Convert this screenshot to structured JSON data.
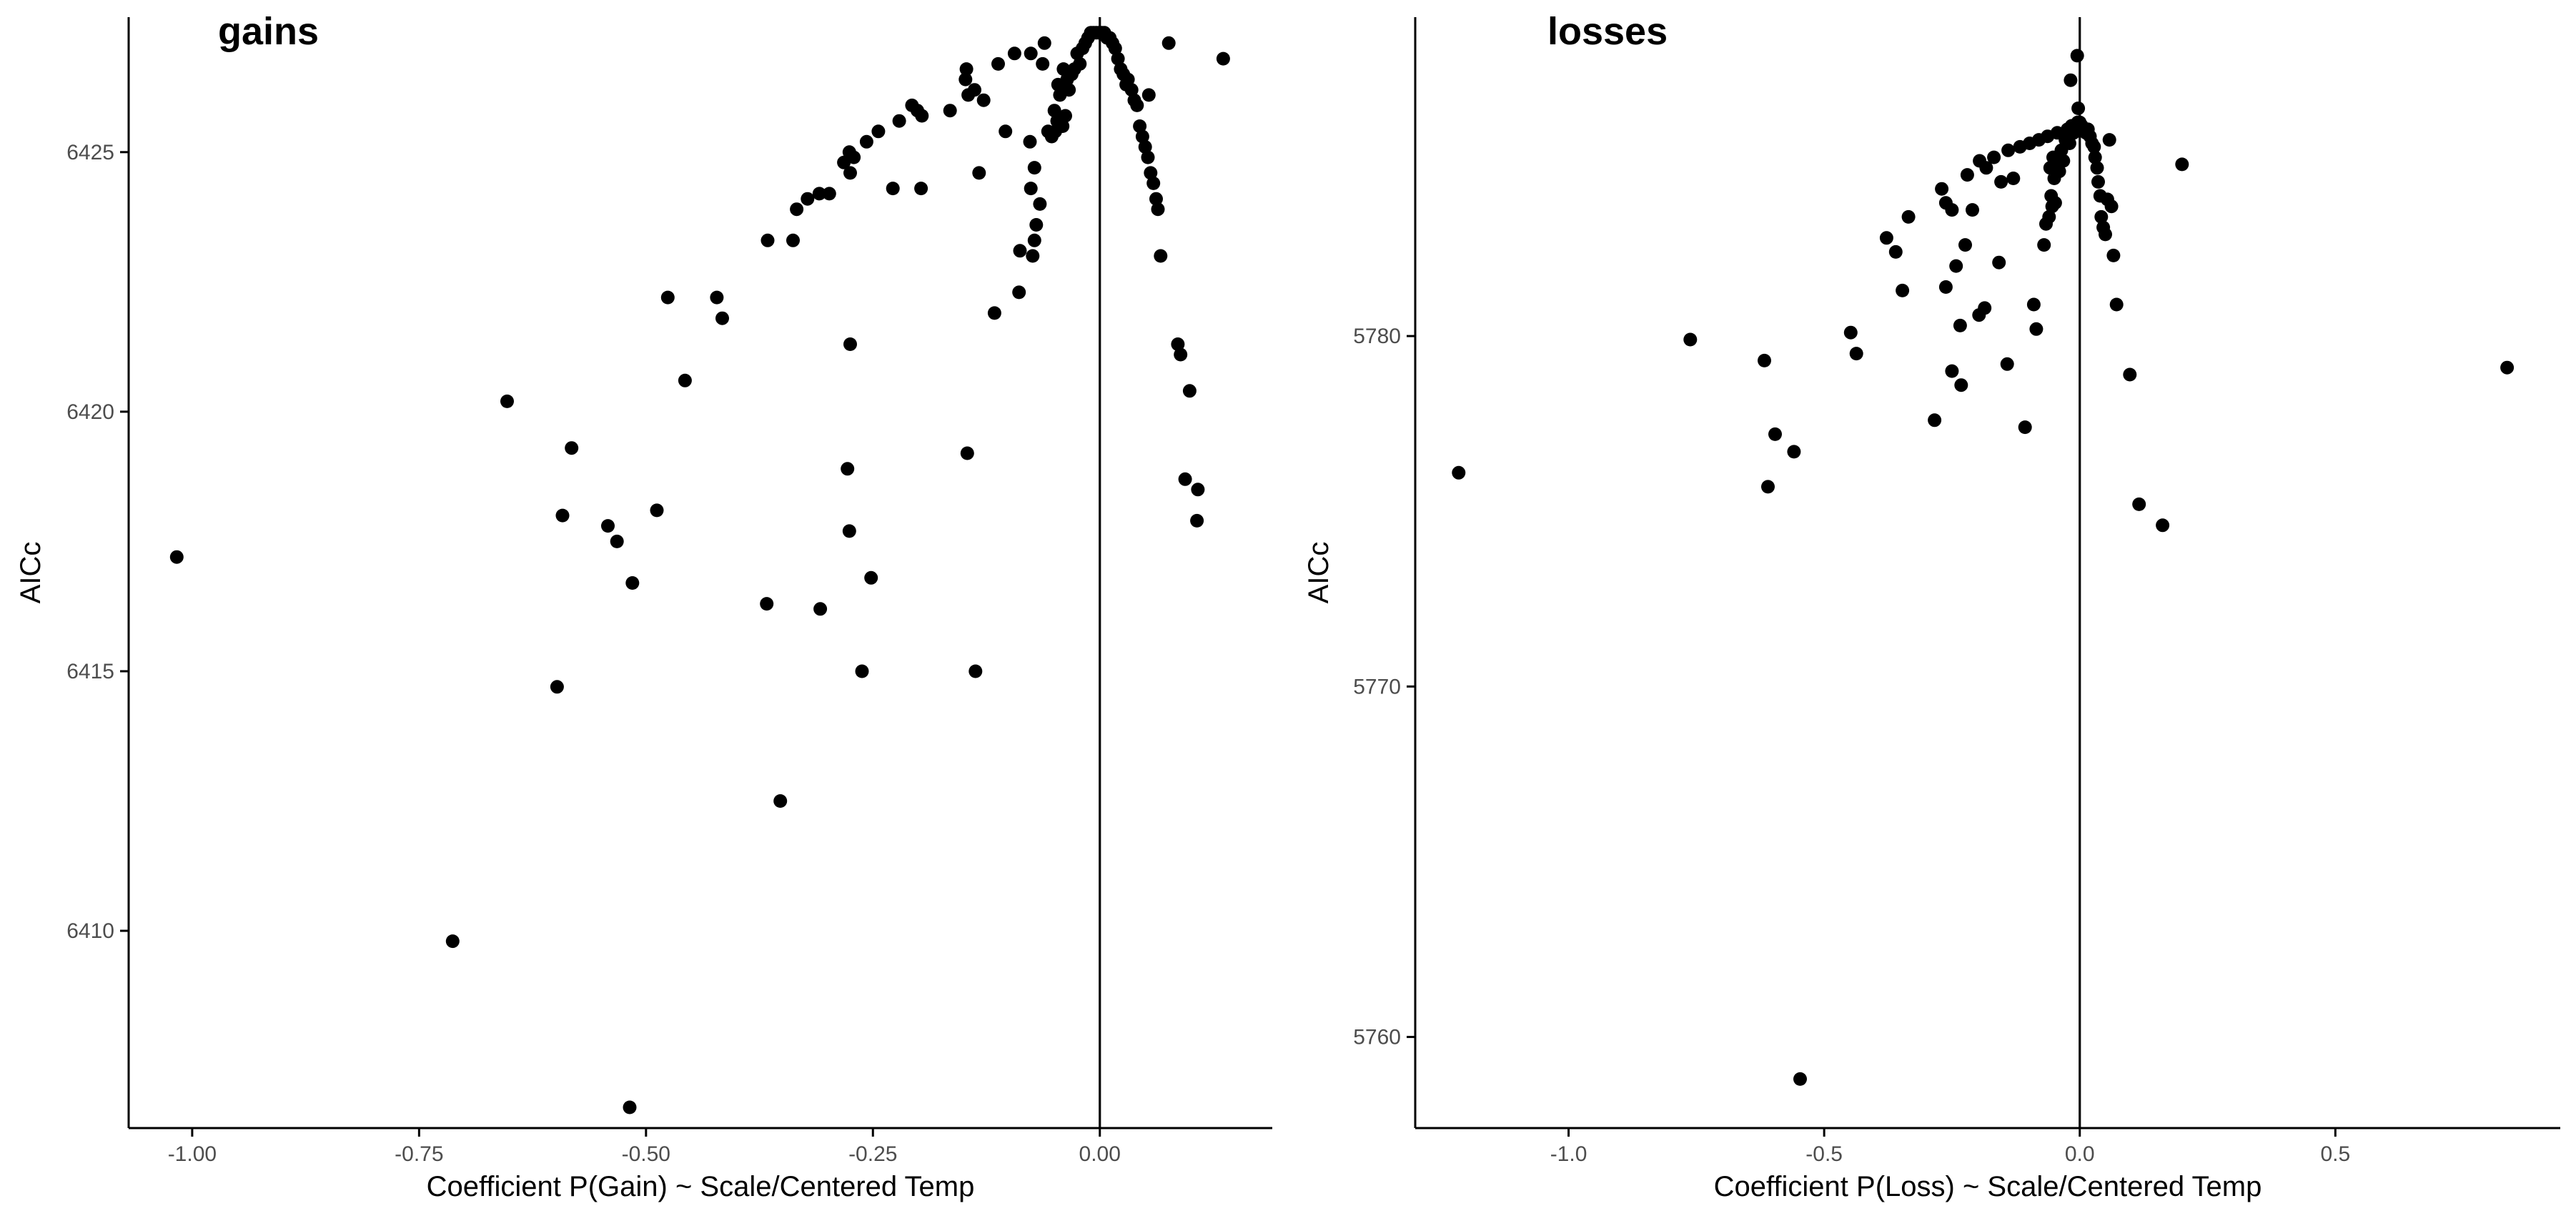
{
  "colors": {
    "point": "#000000",
    "axis": "#000000",
    "tick_label": "#4d4d4d",
    "background": "#ffffff"
  },
  "chart_data": [
    {
      "type": "scatter",
      "title": "gains",
      "xlabel": "Coefficient P(Gain) ~ Scale/Centered Temp",
      "ylabel": "AICc",
      "xlim": [
        -1.07,
        0.19
      ],
      "ylim": [
        6406.2,
        6427.6
      ],
      "xticks": [
        -1.0,
        -0.75,
        -0.5,
        -0.25,
        0.0
      ],
      "xtick_labels": [
        "-1.00",
        "-0.75",
        "-0.50",
        "-0.25",
        "0.00"
      ],
      "yticks": [
        6410,
        6415,
        6420,
        6425
      ],
      "ytick_labels": [
        "6410",
        "6415",
        "6420",
        "6425"
      ],
      "vline_x": 0,
      "grid": false,
      "legend": "none",
      "points": [
        [
          -1.017,
          6417.2
        ],
        [
          -0.713,
          6409.8
        ],
        [
          -0.518,
          6406.6
        ],
        [
          -0.653,
          6420.2
        ],
        [
          -0.582,
          6419.3
        ],
        [
          -0.592,
          6418.0
        ],
        [
          -0.542,
          6417.8
        ],
        [
          -0.532,
          6417.5
        ],
        [
          -0.515,
          6416.7
        ],
        [
          -0.488,
          6418.1
        ],
        [
          -0.598,
          6414.7
        ],
        [
          -0.476,
          6422.2
        ],
        [
          -0.457,
          6420.6
        ],
        [
          -0.422,
          6422.2
        ],
        [
          -0.416,
          6421.8
        ],
        [
          -0.367,
          6416.3
        ],
        [
          -0.352,
          6412.5
        ],
        [
          -0.366,
          6423.3
        ],
        [
          -0.338,
          6423.3
        ],
        [
          -0.334,
          6423.9
        ],
        [
          -0.322,
          6424.1
        ],
        [
          -0.309,
          6424.2
        ],
        [
          -0.298,
          6424.2
        ],
        [
          -0.308,
          6416.2
        ],
        [
          -0.278,
          6418.9
        ],
        [
          -0.276,
          6417.7
        ],
        [
          -0.275,
          6421.3
        ],
        [
          -0.262,
          6415.0
        ],
        [
          -0.252,
          6416.8
        ],
        [
          -0.282,
          6424.8
        ],
        [
          -0.276,
          6425.0
        ],
        [
          -0.271,
          6424.9
        ],
        [
          -0.275,
          6424.6
        ],
        [
          -0.257,
          6425.2
        ],
        [
          -0.244,
          6425.4
        ],
        [
          -0.228,
          6424.3
        ],
        [
          -0.221,
          6425.6
        ],
        [
          -0.207,
          6425.9
        ],
        [
          -0.201,
          6425.8
        ],
        [
          -0.196,
          6425.7
        ],
        [
          -0.197,
          6424.3
        ],
        [
          -0.165,
          6425.8
        ],
        [
          -0.148,
          6426.4
        ],
        [
          -0.145,
          6426.1
        ],
        [
          -0.147,
          6426.6
        ],
        [
          -0.138,
          6426.2
        ],
        [
          -0.128,
          6426.0
        ],
        [
          -0.133,
          6424.6
        ],
        [
          -0.146,
          6419.2
        ],
        [
          -0.137,
          6415.0
        ],
        [
          -0.116,
          6421.9
        ],
        [
          -0.104,
          6425.4
        ],
        [
          -0.112,
          6426.7
        ],
        [
          -0.094,
          6426.9
        ],
        [
          -0.089,
          6422.3
        ],
        [
          -0.088,
          6423.1
        ],
        [
          -0.076,
          6426.9
        ],
        [
          -0.077,
          6425.2
        ],
        [
          -0.076,
          6424.3
        ],
        [
          -0.074,
          6423.0
        ],
        [
          -0.072,
          6423.3
        ],
        [
          -0.07,
          6423.6
        ],
        [
          -0.072,
          6424.7
        ],
        [
          -0.066,
          6424.0
        ],
        [
          -0.063,
          6426.7
        ],
        [
          -0.061,
          6427.1
        ],
        [
          -0.057,
          6425.4
        ],
        [
          -0.053,
          6425.3
        ],
        [
          -0.05,
          6425.8
        ],
        [
          -0.049,
          6425.4
        ],
        [
          -0.047,
          6425.6
        ],
        [
          -0.046,
          6426.3
        ],
        [
          -0.044,
          6426.1
        ],
        [
          -0.041,
          6425.5
        ],
        [
          -0.04,
          6426.6
        ],
        [
          -0.038,
          6425.7
        ],
        [
          -0.036,
          6426.4
        ],
        [
          -0.034,
          6426.2
        ],
        [
          -0.031,
          6426.5
        ],
        [
          -0.028,
          6426.6
        ],
        [
          -0.025,
          6426.9
        ],
        [
          -0.022,
          6426.7
        ],
        [
          -0.019,
          6427.0
        ],
        [
          -0.016,
          6427.1
        ],
        [
          -0.013,
          6427.2
        ],
        [
          -0.01,
          6427.3
        ],
        [
          -0.007,
          6427.3
        ],
        [
          -0.004,
          6427.3
        ],
        [
          -0.001,
          6427.3
        ],
        [
          0.002,
          6427.3
        ],
        [
          0.005,
          6427.3
        ],
        [
          0.008,
          6427.2
        ],
        [
          0.011,
          6427.2
        ],
        [
          0.014,
          6427.1
        ],
        [
          0.017,
          6427.0
        ],
        [
          0.02,
          6426.8
        ],
        [
          0.023,
          6426.6
        ],
        [
          0.026,
          6426.5
        ],
        [
          0.029,
          6426.3
        ],
        [
          0.031,
          6426.4
        ],
        [
          0.035,
          6426.2
        ],
        [
          0.038,
          6426.0
        ],
        [
          0.041,
          6425.9
        ],
        [
          0.044,
          6425.5
        ],
        [
          0.047,
          6425.3
        ],
        [
          0.05,
          6425.1
        ],
        [
          0.053,
          6424.9
        ],
        [
          0.056,
          6424.6
        ],
        [
          0.059,
          6424.4
        ],
        [
          0.062,
          6424.1
        ],
        [
          0.064,
          6423.9
        ],
        [
          0.067,
          6423.0
        ],
        [
          0.054,
          6426.1
        ],
        [
          0.076,
          6427.1
        ],
        [
          0.086,
          6421.3
        ],
        [
          0.089,
          6421.1
        ],
        [
          0.099,
          6420.4
        ],
        [
          0.094,
          6418.7
        ],
        [
          0.108,
          6418.5
        ],
        [
          0.107,
          6417.9
        ],
        [
          0.136,
          6426.8
        ]
      ]
    },
    {
      "type": "scatter",
      "title": "losses",
      "xlabel": "Coefficient P(Loss) ~ Scale/Centered Temp",
      "ylabel": "AICc",
      "xlim": [
        -1.3,
        0.94
      ],
      "ylim": [
        5757.4,
        5789.1
      ],
      "xticks": [
        -1.0,
        -0.5,
        0.0,
        0.5
      ],
      "xtick_labels": [
        "-1.0",
        "-0.5",
        "0.0",
        "0.5"
      ],
      "yticks": [
        5760,
        5770,
        5780
      ],
      "ytick_labels": [
        "5760",
        "5770",
        "5780"
      ],
      "vline_x": 0,
      "grid": false,
      "legend": "none",
      "points": [
        [
          -1.215,
          5776.1
        ],
        [
          -0.762,
          5779.9
        ],
        [
          -0.617,
          5779.3
        ],
        [
          -0.596,
          5777.2
        ],
        [
          -0.61,
          5775.7
        ],
        [
          -0.559,
          5776.7
        ],
        [
          -0.547,
          5758.8
        ],
        [
          -0.448,
          5780.1
        ],
        [
          -0.437,
          5779.5
        ],
        [
          -0.378,
          5782.8
        ],
        [
          -0.36,
          5782.4
        ],
        [
          -0.347,
          5781.3
        ],
        [
          -0.335,
          5783.4
        ],
        [
          -0.284,
          5777.6
        ],
        [
          -0.27,
          5784.2
        ],
        [
          -0.262,
          5783.8
        ],
        [
          -0.262,
          5781.4
        ],
        [
          -0.25,
          5783.6
        ],
        [
          -0.25,
          5779.0
        ],
        [
          -0.242,
          5782.0
        ],
        [
          -0.234,
          5780.3
        ],
        [
          -0.232,
          5778.6
        ],
        [
          -0.224,
          5782.6
        ],
        [
          -0.22,
          5784.6
        ],
        [
          -0.21,
          5783.6
        ],
        [
          -0.197,
          5780.6
        ],
        [
          -0.196,
          5785.0
        ],
        [
          -0.186,
          5780.8
        ],
        [
          -0.183,
          5784.8
        ],
        [
          -0.168,
          5785.1
        ],
        [
          -0.158,
          5782.1
        ],
        [
          -0.154,
          5784.4
        ],
        [
          -0.142,
          5779.2
        ],
        [
          -0.14,
          5785.3
        ],
        [
          -0.13,
          5784.5
        ],
        [
          -0.117,
          5785.4
        ],
        [
          -0.107,
          5777.4
        ],
        [
          -0.098,
          5785.5
        ],
        [
          -0.09,
          5780.9
        ],
        [
          -0.085,
          5780.2
        ],
        [
          -0.08,
          5785.6
        ],
        [
          -0.07,
          5782.6
        ],
        [
          -0.066,
          5783.2
        ],
        [
          -0.063,
          5785.7
        ],
        [
          -0.06,
          5783.4
        ],
        [
          -0.058,
          5784.8
        ],
        [
          -0.056,
          5784.0
        ],
        [
          -0.054,
          5783.7
        ],
        [
          -0.052,
          5785.1
        ],
        [
          -0.05,
          5784.5
        ],
        [
          -0.048,
          5783.8
        ],
        [
          -0.046,
          5784.9
        ],
        [
          -0.044,
          5785.8
        ],
        [
          -0.04,
          5784.7
        ],
        [
          -0.036,
          5785.3
        ],
        [
          -0.032,
          5785.0
        ],
        [
          -0.028,
          5785.6
        ],
        [
          -0.024,
          5785.9
        ],
        [
          -0.02,
          5785.5
        ],
        [
          -0.016,
          5786.0
        ],
        [
          -0.012,
          5785.8
        ],
        [
          -0.008,
          5786.0
        ],
        [
          -0.004,
          5786.1
        ],
        [
          -0.018,
          5787.3
        ],
        [
          -0.005,
          5788.0
        ],
        [
          -0.003,
          5786.5
        ],
        [
          0.0,
          5786.1
        ],
        [
          0.004,
          5786.0
        ],
        [
          0.008,
          5785.9
        ],
        [
          0.012,
          5785.8
        ],
        [
          0.016,
          5785.9
        ],
        [
          0.02,
          5785.7
        ],
        [
          0.024,
          5785.5
        ],
        [
          0.028,
          5785.4
        ],
        [
          0.03,
          5785.1
        ],
        [
          0.034,
          5784.8
        ],
        [
          0.036,
          5784.4
        ],
        [
          0.04,
          5784.0
        ],
        [
          0.042,
          5783.4
        ],
        [
          0.046,
          5783.1
        ],
        [
          0.05,
          5782.9
        ],
        [
          0.054,
          5783.9
        ],
        [
          0.058,
          5785.6
        ],
        [
          0.062,
          5783.7
        ],
        [
          0.066,
          5782.3
        ],
        [
          0.072,
          5780.9
        ],
        [
          0.098,
          5778.9
        ],
        [
          0.116,
          5775.2
        ],
        [
          0.162,
          5774.6
        ],
        [
          0.2,
          5784.9
        ],
        [
          0.836,
          5779.1
        ]
      ]
    }
  ]
}
